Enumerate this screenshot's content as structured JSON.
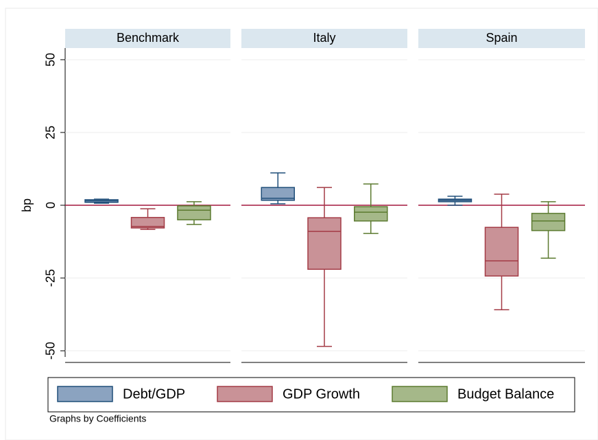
{
  "chart_data": {
    "type": "box",
    "panels": [
      "Benchmark",
      "Italy",
      "Spain"
    ],
    "ylabel": "bp",
    "ylim": [
      -54,
      54
    ],
    "yticks": [
      50,
      25,
      0,
      -25,
      -50
    ],
    "grid": true,
    "yline": 0,
    "note": "Graphs by Coefficients",
    "legend": "bottom",
    "series": [
      {
        "name": "Debt/GDP",
        "color": "#8ba3c0",
        "edge_color": "#1f4e79",
        "values": [
          [
            0.7,
            1.0,
            1.5,
            1.9,
            2.1
          ],
          [
            0.5,
            1.7,
            2.4,
            6.1,
            11.1
          ],
          [
            0,
            1.2,
            1.7,
            2.1,
            3.1
          ]
        ]
      },
      {
        "name": "GDP Growth",
        "color": "#c99297",
        "edge_color": "#a33a45",
        "values": [
          [
            -8.3,
            -7.8,
            -7.3,
            -4.2,
            -1.2
          ],
          [
            -48.5,
            -22,
            -9,
            -4.3,
            6.1
          ],
          [
            -35.9,
            -24.3,
            -19.1,
            -7.6,
            3.8
          ]
        ]
      },
      {
        "name": "Budget Balance",
        "color": "#a5b889",
        "edge_color": "#5b7a2f",
        "values": [
          [
            -6.6,
            -5,
            -1.7,
            -0.2,
            1.2
          ],
          [
            -9.7,
            -5.4,
            -2.4,
            -0.5,
            7.3
          ],
          [
            -18.2,
            -8.7,
            -5.4,
            -2.8,
            1.2
          ]
        ]
      }
    ]
  }
}
